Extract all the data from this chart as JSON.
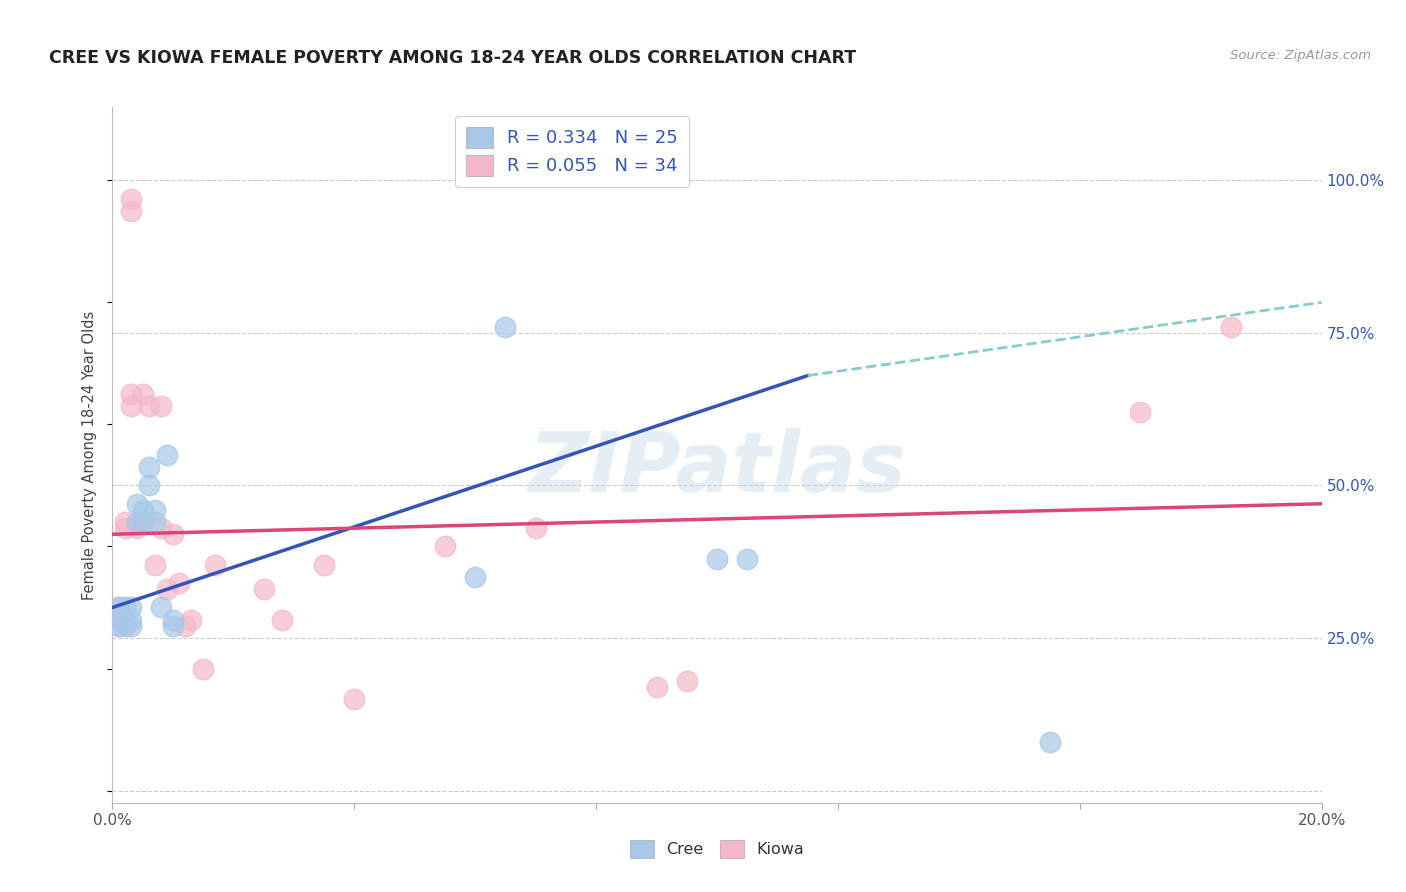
{
  "title": "CREE VS KIOWA FEMALE POVERTY AMONG 18-24 YEAR OLDS CORRELATION CHART",
  "source": "Source: ZipAtlas.com",
  "ylabel": "Female Poverty Among 18-24 Year Olds",
  "xlim": [
    0.0,
    0.2
  ],
  "ylim": [
    -0.02,
    1.12
  ],
  "xticks": [
    0.0,
    0.04,
    0.08,
    0.12,
    0.16,
    0.2
  ],
  "xticklabels": [
    "0.0%",
    "",
    "",
    "",
    "",
    "20.0%"
  ],
  "yticks_right": [
    0.0,
    0.25,
    0.5,
    0.75,
    1.0
  ],
  "yticklabels_right": [
    "",
    "25.0%",
    "50.0%",
    "75.0%",
    "100.0%"
  ],
  "cree_color": "#a8c8e8",
  "kiowa_color": "#f4b8c8",
  "cree_line_color": "#3355bb",
  "kiowa_line_color": "#dd4477",
  "dash_color": "#88cccc",
  "cree_R": 0.334,
  "cree_N": 25,
  "kiowa_R": 0.055,
  "kiowa_N": 34,
  "watermark": "ZIPatlas",
  "background_color": "#ffffff",
  "grid_color": "#cccccc",
  "cree_x": [
    0.001,
    0.001,
    0.001,
    0.002,
    0.002,
    0.003,
    0.003,
    0.003,
    0.004,
    0.004,
    0.005,
    0.005,
    0.006,
    0.006,
    0.007,
    0.007,
    0.008,
    0.009,
    0.01,
    0.01,
    0.06,
    0.065,
    0.1,
    0.105,
    0.155
  ],
  "cree_y": [
    0.27,
    0.28,
    0.3,
    0.27,
    0.3,
    0.27,
    0.28,
    0.3,
    0.44,
    0.47,
    0.44,
    0.46,
    0.5,
    0.53,
    0.44,
    0.46,
    0.3,
    0.55,
    0.27,
    0.28,
    0.35,
    0.76,
    0.38,
    0.38,
    0.08
  ],
  "kiowa_x": [
    0.001,
    0.001,
    0.001,
    0.002,
    0.002,
    0.003,
    0.003,
    0.003,
    0.003,
    0.004,
    0.004,
    0.005,
    0.005,
    0.006,
    0.007,
    0.008,
    0.008,
    0.009,
    0.01,
    0.011,
    0.012,
    0.013,
    0.015,
    0.017,
    0.025,
    0.028,
    0.035,
    0.04,
    0.055,
    0.07,
    0.09,
    0.095,
    0.17,
    0.185
  ],
  "kiowa_y": [
    0.27,
    0.28,
    0.3,
    0.43,
    0.44,
    0.63,
    0.65,
    0.95,
    0.97,
    0.43,
    0.44,
    0.44,
    0.65,
    0.63,
    0.37,
    0.43,
    0.63,
    0.33,
    0.42,
    0.34,
    0.27,
    0.28,
    0.2,
    0.37,
    0.33,
    0.28,
    0.37,
    0.15,
    0.4,
    0.43,
    0.17,
    0.18,
    0.62,
    0.76
  ],
  "cree_line_x": [
    0.0,
    0.115
  ],
  "cree_line_y": [
    0.3,
    0.68
  ],
  "kiowa_line_x": [
    0.0,
    0.2
  ],
  "kiowa_line_y": [
    0.42,
    0.47
  ],
  "dash_line_x": [
    0.115,
    0.2
  ],
  "dash_line_y": [
    0.68,
    0.8
  ]
}
